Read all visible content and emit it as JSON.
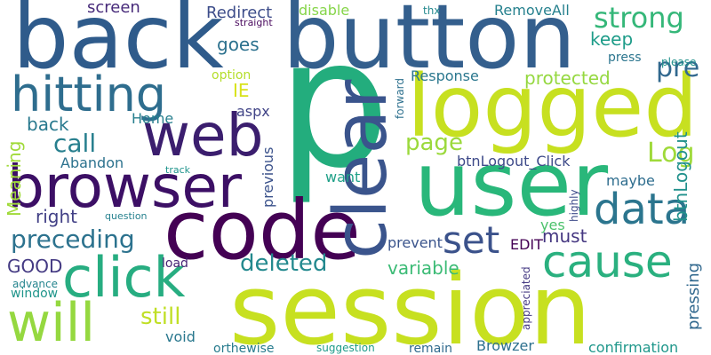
{
  "words": [
    {
      "text": "back",
      "color": "#2f5b8b"
    },
    {
      "text": "button",
      "color": "#345f8d"
    },
    {
      "text": "p",
      "color": "#23ad7d"
    },
    {
      "text": "logged",
      "color": "#c7e020"
    },
    {
      "text": "user",
      "color": "#29b77a"
    },
    {
      "text": "session",
      "color": "#c7e020"
    },
    {
      "text": "code",
      "color": "#440154"
    },
    {
      "text": "web",
      "color": "#3b1e6e"
    },
    {
      "text": "browser",
      "color": "#3c0f65"
    },
    {
      "text": "hitting",
      "color": "#2e6d8e"
    },
    {
      "text": "clear",
      "color": "#3a548c"
    },
    {
      "text": "click",
      "color": "#27ad81"
    },
    {
      "text": "will",
      "color": "#95d840"
    },
    {
      "text": "data",
      "color": "#2b758e"
    },
    {
      "text": "cause",
      "color": "#2ab07f"
    },
    {
      "text": "set",
      "color": "#3b528b"
    },
    {
      "text": "strong",
      "color": "#35b779"
    },
    {
      "text": "pre",
      "color": "#31688e"
    },
    {
      "text": "Log",
      "color": "#9fda3a"
    },
    {
      "text": "page",
      "color": "#9bd93c"
    },
    {
      "text": "preceding",
      "color": "#2c728e"
    },
    {
      "text": "deleted",
      "color": "#23898e"
    },
    {
      "text": "call",
      "color": "#277f8e"
    },
    {
      "text": "back",
      "color": "#29798e"
    },
    {
      "text": "right",
      "color": "#424086"
    },
    {
      "text": "GOOD",
      "color": "#443a83"
    },
    {
      "text": "still",
      "color": "#c0df25"
    },
    {
      "text": "must",
      "color": "#453781"
    },
    {
      "text": "variable",
      "color": "#3bbb75"
    },
    {
      "text": "Response",
      "color": "#2a778e"
    },
    {
      "text": "protected",
      "color": "#95d840"
    },
    {
      "text": "keep",
      "color": "#1e9c89"
    },
    {
      "text": "goes",
      "color": "#2c718e"
    },
    {
      "text": "screen",
      "color": "#472a7a"
    },
    {
      "text": "Redirect",
      "color": "#3d4d8a"
    },
    {
      "text": "disable",
      "color": "#86d549"
    },
    {
      "text": "RemoveAll",
      "color": "#26818e"
    },
    {
      "text": "straight",
      "color": "#4b0b5f"
    },
    {
      "text": "thx",
      "color": "#23898e"
    },
    {
      "text": "press",
      "color": "#2b758e"
    },
    {
      "text": "please",
      "color": "#21918c"
    },
    {
      "text": "option",
      "color": "#b5de2b"
    },
    {
      "text": "IE",
      "color": "#d8e219"
    },
    {
      "text": "aspx",
      "color": "#414487"
    },
    {
      "text": "Home",
      "color": "#277f8e"
    },
    {
      "text": "Abandon",
      "color": "#2c728e"
    },
    {
      "text": "track",
      "color": "#1f948c"
    },
    {
      "text": "want",
      "color": "#1fa088"
    },
    {
      "text": "maybe",
      "color": "#2e6d8e"
    },
    {
      "text": "btnLogout_Click",
      "color": "#3e4a89"
    },
    {
      "text": "btnLogout",
      "color": "#21918c"
    },
    {
      "text": "EDIT",
      "color": "#440154"
    },
    {
      "text": "yes",
      "color": "#4cc26c"
    },
    {
      "text": "prevent",
      "color": "#3a548c"
    },
    {
      "text": "question",
      "color": "#26818e"
    },
    {
      "text": "load",
      "color": "#482576"
    },
    {
      "text": "advance",
      "color": "#25848e"
    },
    {
      "text": "window",
      "color": "#1f958b"
    },
    {
      "text": "void",
      "color": "#2a788e"
    },
    {
      "text": "orthewise",
      "color": "#287c8e"
    },
    {
      "text": "suggestion",
      "color": "#1e9b8a"
    },
    {
      "text": "remain",
      "color": "#306a8e"
    },
    {
      "text": "Browzer",
      "color": "#2d708e"
    },
    {
      "text": "confirmation",
      "color": "#1f978b"
    },
    {
      "text": "Meaning",
      "color": "#a0da39"
    },
    {
      "text": "previous",
      "color": "#3b528b"
    },
    {
      "text": "forward",
      "color": "#2d708e"
    },
    {
      "text": "appreciated",
      "color": "#443983"
    },
    {
      "text": "highly",
      "color": "#3e4c8a"
    },
    {
      "text": "pressing",
      "color": "#31688e"
    }
  ]
}
